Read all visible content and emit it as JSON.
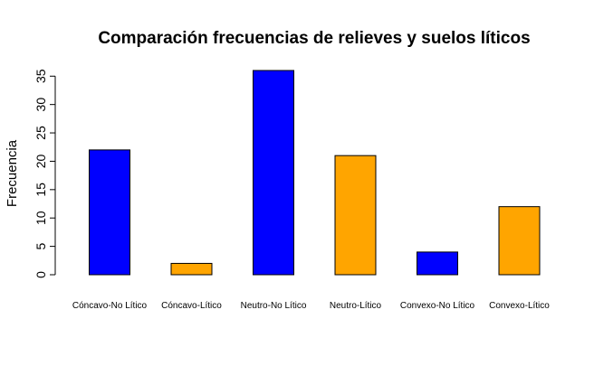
{
  "chart_data": {
    "type": "bar",
    "title": "Comparación frecuencias de relieves y suelos líticos",
    "xlabel": "",
    "ylabel": "Frecuencia",
    "categories": [
      "Cóncavo-No Lítico",
      "Cóncavo-Lítico",
      "Neutro-No Lítico",
      "Neutro-Lítico",
      "Convexo-No Lítico",
      "Convexo-Lítico"
    ],
    "values": [
      22,
      2,
      36,
      21,
      4,
      12
    ],
    "colors": [
      "#0000FF",
      "#FFA500",
      "#0000FF",
      "#FFA500",
      "#0000FF",
      "#FFA500"
    ],
    "yticks": [
      0,
      5,
      10,
      15,
      20,
      25,
      30,
      35
    ],
    "ylim": [
      0,
      36
    ],
    "grid": false,
    "legend": "none"
  }
}
